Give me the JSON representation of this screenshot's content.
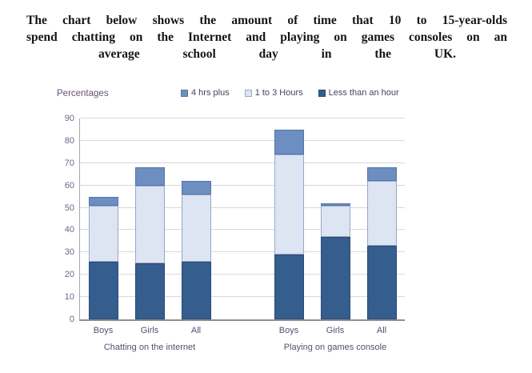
{
  "document": {
    "title_lines": [
      "The chart below shows the amount of time that 10 to 15-year-olds",
      "spend chatting on the Internet and playing on games consoles on an",
      "average school day in the UK."
    ]
  },
  "chart_data": {
    "type": "bar",
    "stacked": true,
    "axis_label": "Percentages",
    "ylim": [
      0,
      90
    ],
    "ytick_step": 10,
    "grid": true,
    "legend_position": "top",
    "legend": [
      {
        "label": "4 hrs plus",
        "color": "#6C8EC1",
        "border": "#5377A8"
      },
      {
        "label": "1 to 3 Hours",
        "color": "#DDE4F2",
        "border": "#98A9CC"
      },
      {
        "label": "Less than an hour",
        "color": "#355E8F",
        "border": "#284973"
      }
    ],
    "groups": [
      {
        "label": "Chatting on the internet",
        "categories": [
          "Boys",
          "Girls",
          "All"
        ]
      },
      {
        "label": "Playing on games console",
        "categories": [
          "Boys",
          "Girls",
          "All"
        ]
      }
    ],
    "series": [
      {
        "name": "Less than an hour",
        "color": "#355E8F",
        "border": "#284973",
        "values": [
          26,
          25,
          26,
          29,
          37,
          33
        ]
      },
      {
        "name": "1 to 3 Hours",
        "color": "#DDE4F2",
        "border": "#98A9CC",
        "values": [
          25,
          35,
          30,
          45,
          14,
          29
        ]
      },
      {
        "name": "4 hrs plus",
        "color": "#6C8EC1",
        "border": "#5377A8",
        "values": [
          4,
          8,
          6,
          11,
          1,
          6
        ]
      }
    ]
  }
}
